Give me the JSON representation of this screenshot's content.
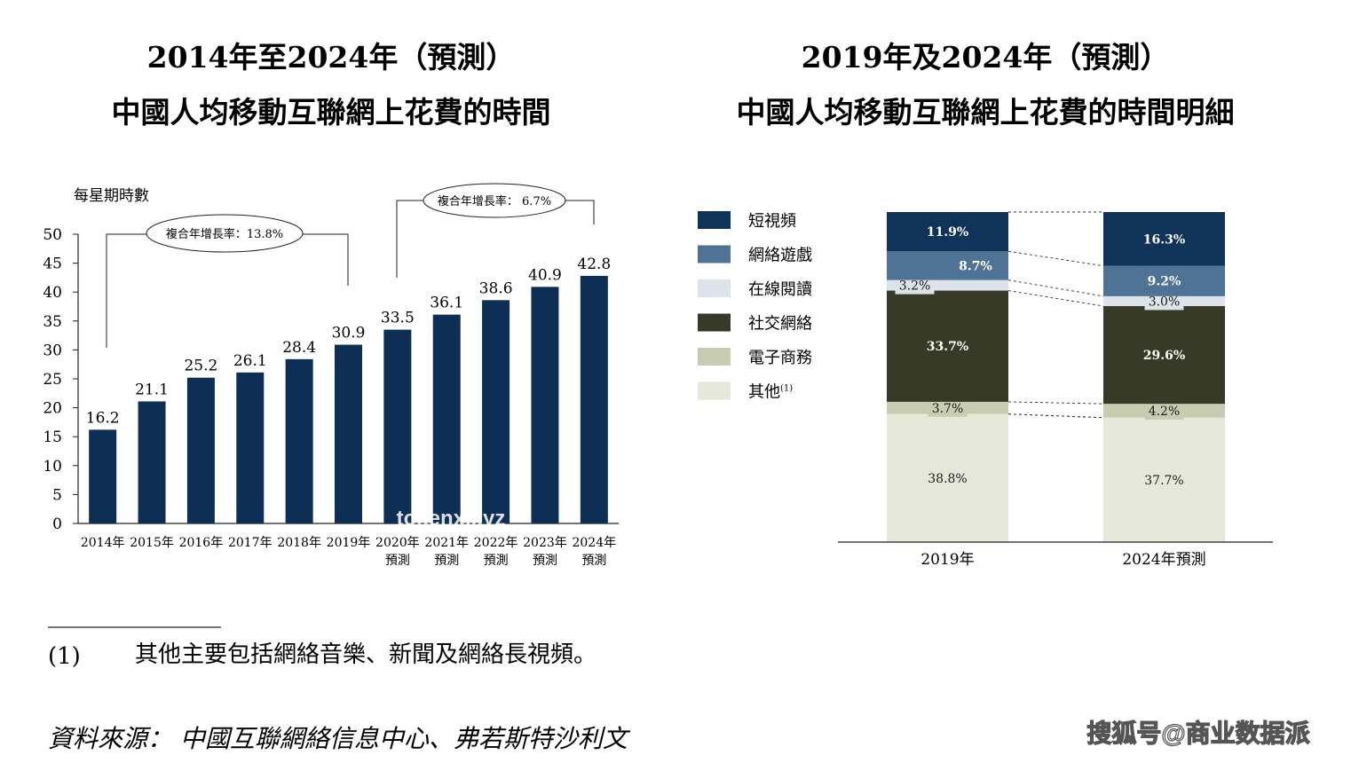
{
  "left_chart": {
    "title_line1": "2014年至2024年（預測）",
    "title_line2": "中國人均移動互聯網上花費的時間",
    "y_unit_label": "每星期時數",
    "cagr1_label": "複合年增長率：13.8%",
    "cagr2_label": "複合年增長率： 6.7%"
  },
  "right_chart": {
    "title_line1": "2019年及2024年（預測）",
    "title_line2": "中國人均移動互聯網上花費的時間明細"
  },
  "footnote": {
    "marker": "(1)",
    "text": "其他主要包括網絡音樂、新聞及網絡長視頻。"
  },
  "source_text": "資料來源：  中國互聯網絡信息中心、弗若斯特沙利文",
  "watermark_center": "tokenx.xyz",
  "watermark_corner": "搜狐号@商业数据派",
  "colors": {
    "bar": "#0d2f55",
    "short_video": "#10335a",
    "online_game": "#4e7394",
    "online_reading": "#dde3ea",
    "social": "#373a27",
    "ecommerce": "#c9ccb1",
    "other": "#e6e8da"
  },
  "chart_data": [
    {
      "type": "bar",
      "title": "2014年至2024年（預測） 中國人均移動互聯網上花費的時間",
      "ylabel": "每星期時數",
      "categories": [
        "2014年",
        "2015年",
        "2016年",
        "2017年",
        "2018年",
        "2019年",
        "2020年 預測",
        "2021年 預測",
        "2022年 預測",
        "2023年 預測",
        "2024年 預測"
      ],
      "values": [
        16.2,
        21.1,
        25.2,
        26.1,
        28.4,
        30.9,
        33.5,
        36.1,
        38.6,
        40.9,
        42.8
      ],
      "yticks": [
        0,
        5,
        10,
        15,
        20,
        25,
        30,
        35,
        40,
        45,
        50
      ],
      "ylim": [
        0,
        50
      ],
      "annotations": [
        "複合年增長率：13.8%",
        "複合年增長率： 6.7%"
      ]
    },
    {
      "type": "bar",
      "stacked": true,
      "percent": true,
      "title": "2019年及2024年（預測） 中國人均移動互聯網上花費的時間明細",
      "categories": [
        "2019年",
        "2024年預測"
      ],
      "series": [
        {
          "name": "其他(1)",
          "values": [
            38.8,
            37.7
          ]
        },
        {
          "name": "電子商務",
          "values": [
            3.7,
            4.2
          ]
        },
        {
          "name": "社交網絡",
          "values": [
            33.7,
            29.6
          ]
        },
        {
          "name": "在線閱讀",
          "values": [
            3.2,
            3.0
          ]
        },
        {
          "name": "網絡遊戲",
          "values": [
            8.7,
            9.2
          ]
        },
        {
          "name": "短視頻",
          "values": [
            11.9,
            16.3
          ]
        }
      ],
      "legend": [
        "短視頻",
        "網絡遊戲",
        "在線閱讀",
        "社交網絡",
        "電子商務",
        "其他(1)"
      ],
      "legend_position": "left"
    }
  ]
}
